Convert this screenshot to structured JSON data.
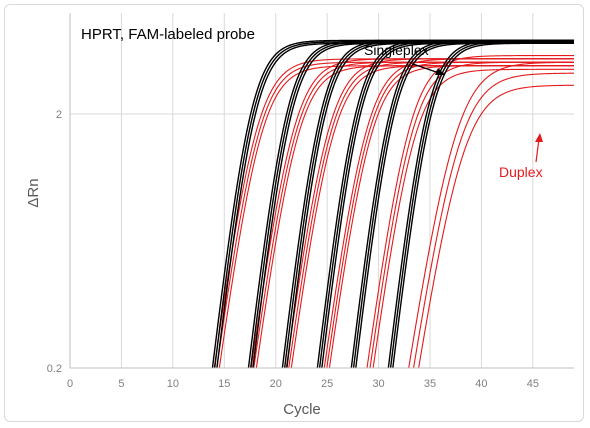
{
  "chart_data": {
    "type": "line",
    "title": "HPRT, FAM-labeled probe",
    "xlabel": "Cycle",
    "ylabel": "ΔRn",
    "xlim": [
      0,
      49
    ],
    "ylim": [
      0.2,
      5
    ],
    "yscale": "log",
    "x_ticks": [
      0,
      5,
      10,
      15,
      20,
      25,
      30,
      35,
      40,
      45
    ],
    "y_ticks": [
      0.2,
      2
    ],
    "grid": "vertical",
    "annotations": [
      {
        "text": "Singleplex",
        "color": "#000000"
      },
      {
        "text": "Duplex",
        "color": "#e41a1c"
      }
    ],
    "model": "sigmoid: y = base + (plateau - base) / (1 + exp(-(x - midpoint)/slope)); each series is a replicate curve",
    "series": [
      {
        "group": "Singleplex",
        "color": "#000000",
        "midpoint": 17.5,
        "slope": 1.25,
        "plateau": 3.9
      },
      {
        "group": "Singleplex",
        "color": "#000000",
        "midpoint": 17.7,
        "slope": 1.25,
        "plateau": 3.85
      },
      {
        "group": "Singleplex",
        "color": "#000000",
        "midpoint": 17.9,
        "slope": 1.25,
        "plateau": 3.8
      },
      {
        "group": "Singleplex",
        "color": "#000000",
        "midpoint": 21.0,
        "slope": 1.25,
        "plateau": 3.9
      },
      {
        "group": "Singleplex",
        "color": "#000000",
        "midpoint": 21.2,
        "slope": 1.25,
        "plateau": 3.85
      },
      {
        "group": "Singleplex",
        "color": "#000000",
        "midpoint": 21.4,
        "slope": 1.25,
        "plateau": 3.8
      },
      {
        "group": "Singleplex",
        "color": "#000000",
        "midpoint": 24.3,
        "slope": 1.25,
        "plateau": 3.9
      },
      {
        "group": "Singleplex",
        "color": "#000000",
        "midpoint": 24.5,
        "slope": 1.25,
        "plateau": 3.85
      },
      {
        "group": "Singleplex",
        "color": "#000000",
        "midpoint": 24.7,
        "slope": 1.25,
        "plateau": 3.8
      },
      {
        "group": "Singleplex",
        "color": "#000000",
        "midpoint": 27.7,
        "slope": 1.25,
        "plateau": 3.9
      },
      {
        "group": "Singleplex",
        "color": "#000000",
        "midpoint": 27.9,
        "slope": 1.25,
        "plateau": 3.85
      },
      {
        "group": "Singleplex",
        "color": "#000000",
        "midpoint": 28.1,
        "slope": 1.25,
        "plateau": 3.8
      },
      {
        "group": "Singleplex",
        "color": "#000000",
        "midpoint": 31.0,
        "slope": 1.25,
        "plateau": 3.9
      },
      {
        "group": "Singleplex",
        "color": "#000000",
        "midpoint": 31.2,
        "slope": 1.25,
        "plateau": 3.85
      },
      {
        "group": "Singleplex",
        "color": "#000000",
        "midpoint": 31.4,
        "slope": 1.25,
        "plateau": 3.8
      },
      {
        "group": "Singleplex",
        "color": "#000000",
        "midpoint": 34.6,
        "slope": 1.25,
        "plateau": 3.9
      },
      {
        "group": "Singleplex",
        "color": "#000000",
        "midpoint": 34.8,
        "slope": 1.25,
        "plateau": 3.85
      },
      {
        "group": "Singleplex",
        "color": "#000000",
        "midpoint": 35.0,
        "slope": 1.25,
        "plateau": 3.8
      },
      {
        "group": "Duplex",
        "color": "#e41a1c",
        "midpoint": 18.0,
        "slope": 1.45,
        "plateau": 3.3
      },
      {
        "group": "Duplex",
        "color": "#e41a1c",
        "midpoint": 18.2,
        "slope": 1.45,
        "plateau": 3.2
      },
      {
        "group": "Duplex",
        "color": "#e41a1c",
        "midpoint": 18.4,
        "slope": 1.45,
        "plateau": 3.1
      },
      {
        "group": "Duplex",
        "color": "#e41a1c",
        "midpoint": 21.6,
        "slope": 1.45,
        "plateau": 3.3
      },
      {
        "group": "Duplex",
        "color": "#e41a1c",
        "midpoint": 21.8,
        "slope": 1.45,
        "plateau": 3.2
      },
      {
        "group": "Duplex",
        "color": "#e41a1c",
        "midpoint": 22.0,
        "slope": 1.45,
        "plateau": 3.1
      },
      {
        "group": "Duplex",
        "color": "#e41a1c",
        "midpoint": 25.0,
        "slope": 1.45,
        "plateau": 3.3
      },
      {
        "group": "Duplex",
        "color": "#e41a1c",
        "midpoint": 25.2,
        "slope": 1.45,
        "plateau": 3.2
      },
      {
        "group": "Duplex",
        "color": "#e41a1c",
        "midpoint": 25.4,
        "slope": 1.45,
        "plateau": 3.1
      },
      {
        "group": "Duplex",
        "color": "#e41a1c",
        "midpoint": 28.7,
        "slope": 1.45,
        "plateau": 3.3
      },
      {
        "group": "Duplex",
        "color": "#e41a1c",
        "midpoint": 28.9,
        "slope": 1.45,
        "plateau": 3.2
      },
      {
        "group": "Duplex",
        "color": "#e41a1c",
        "midpoint": 29.1,
        "slope": 1.45,
        "plateau": 3.1
      },
      {
        "group": "Duplex",
        "color": "#e41a1c",
        "midpoint": 32.9,
        "slope": 1.45,
        "plateau": 3.4
      },
      {
        "group": "Duplex",
        "color": "#e41a1c",
        "midpoint": 33.1,
        "slope": 1.45,
        "plateau": 3.2
      },
      {
        "group": "Duplex",
        "color": "#e41a1c",
        "midpoint": 33.3,
        "slope": 1.45,
        "plateau": 3.0
      },
      {
        "group": "Duplex",
        "color": "#e41a1c",
        "midpoint": 37.4,
        "slope": 1.65,
        "plateau": 3.2
      },
      {
        "group": "Duplex",
        "color": "#e41a1c",
        "midpoint": 37.7,
        "slope": 1.65,
        "plateau": 2.9
      },
      {
        "group": "Duplex",
        "color": "#e41a1c",
        "midpoint": 38.0,
        "slope": 1.65,
        "plateau": 2.6
      }
    ]
  }
}
